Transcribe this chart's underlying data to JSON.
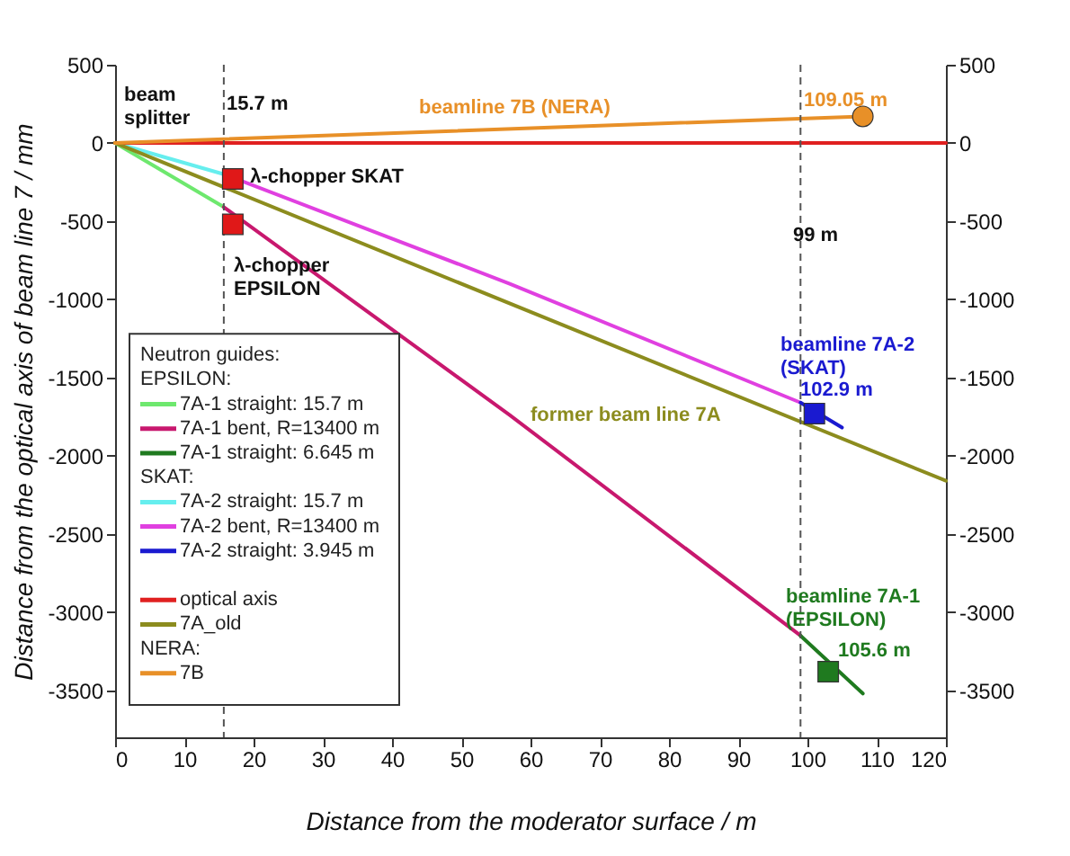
{
  "chart_data": {
    "type": "line",
    "xlabel": "Distance from the moderator surface / m",
    "ylabel": "Distance from the optical axis of beam line 7 / mm",
    "legend_title": "Neutron guides:",
    "legend": "bottom left",
    "grid": false,
    "xlim": [
      0,
      120
    ],
    "xticks": [
      0,
      10,
      20,
      30,
      40,
      50,
      60,
      70,
      80,
      90,
      100,
      110,
      120
    ],
    "ylim": [
      -3800,
      500
    ],
    "yticks": [
      500,
      0,
      -500,
      -1000,
      -1500,
      -2000,
      -2500,
      -3000,
      -3500
    ],
    "y2lim": [
      -3800,
      500
    ],
    "y2ticks": [
      500,
      0,
      -500,
      -1000,
      -1500,
      -2000,
      -2500,
      -3000,
      -3500
    ],
    "series": [
      {
        "name": "7A-1 straight: 15.7 m",
        "color": "#6ee86e",
        "x": [
          0,
          15.7
        ],
        "values": [
          0,
          -410
        ]
      },
      {
        "name": "7A-1 bent, R=13400 m",
        "color": "#c8186e",
        "x": [
          15.7,
          57,
          99
        ],
        "values": [
          -410,
          -1740,
          -3150
        ]
      },
      {
        "name": "7A-1 straight: 6.645 m",
        "color": "#1f7a1f",
        "x": [
          99,
          108
        ],
        "values": [
          -3150,
          -3520
        ]
      },
      {
        "name": "7A-2 straight: 15.7 m",
        "color": "#66eeee",
        "x": [
          0,
          15.7
        ],
        "values": [
          0,
          -200
        ]
      },
      {
        "name": "7A-2 bent, R=13400 m",
        "color": "#e040e0",
        "x": [
          15.7,
          57,
          99
        ],
        "values": [
          -200,
          -900,
          -1660
        ]
      },
      {
        "name": "7A-2 straight: 3.945 m",
        "color": "#1a1ad0",
        "x": [
          99,
          105
        ],
        "values": [
          -1660,
          -1820
        ]
      },
      {
        "name": "optical axis",
        "color": "#e02020",
        "x": [
          0,
          120
        ],
        "values": [
          0,
          0
        ]
      },
      {
        "name": "7A_old",
        "color": "#8c8c1e",
        "x": [
          0,
          120
        ],
        "values": [
          0,
          -2160
        ]
      },
      {
        "name": "7B",
        "color": "#e89028",
        "x": [
          0,
          108
        ],
        "values": [
          0,
          170
        ]
      },
      {
        "type": "scatter",
        "marker": "square",
        "color": "#e01818",
        "x": [
          17,
          17
        ],
        "values": [
          -230,
          -520
        ]
      },
      {
        "type": "scatter",
        "marker": "square",
        "color": "#1a1ad0",
        "x": [
          101
        ],
        "values": [
          -1730
        ]
      },
      {
        "type": "scatter",
        "marker": "square",
        "color": "#1f7a1f",
        "x": [
          103
        ],
        "values": [
          -3380
        ]
      },
      {
        "type": "scatter",
        "marker": "circle",
        "color": "#e89028",
        "x": [
          108
        ],
        "values": [
          170
        ]
      }
    ],
    "ref_lines": [
      {
        "axis": "x",
        "value": 15.7,
        "line_style": "dashed",
        "color": "#555555"
      },
      {
        "axis": "x",
        "value": 99,
        "line_style": "dashed",
        "color": "#555555"
      }
    ],
    "annotations": [
      "beam\nsplitter",
      "15.7 m",
      {
        "text": "λ-chopper SKAT",
        "x": 19.5,
        "y": -220
      },
      "λ-chopper\nEPSILON",
      "99 m",
      "beamline 7B (NERA)",
      "109.05 m",
      "beamline 7A-2\n(SKAT)",
      "102.9 m",
      "former beam line 7A",
      "beamline 7A-1\n(EPSILON)",
      "105.6 m",
      "EPSILON:",
      "SKAT:",
      "NERA:"
    ]
  }
}
